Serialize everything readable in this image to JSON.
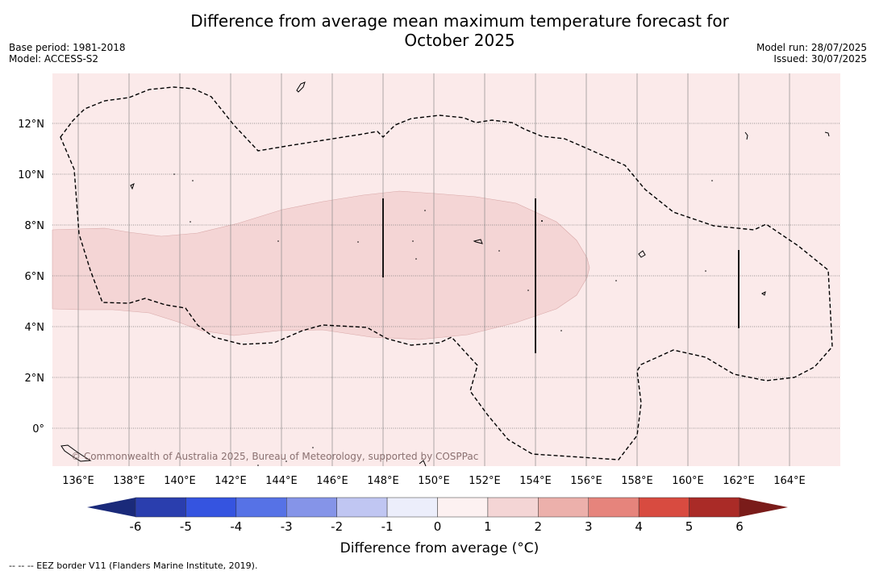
{
  "title_line1": "Difference from average mean maximum temperature forecast for",
  "title_line2": "October 2025",
  "base_period": "Base period: 1981-2018",
  "model": "Model: ACCESS-S2",
  "model_run": "Model run: 28/07/2025",
  "issued": "Issued: 30/07/2025",
  "copyright": "© Commonwealth of Australia 2025, Bureau of Meteorology, supported by COSPPac",
  "lon_labels": [
    "136°E",
    "138°E",
    "140°E",
    "142°E",
    "144°E",
    "146°E",
    "148°E",
    "150°E",
    "152°E",
    "154°E",
    "156°E",
    "158°E",
    "160°E",
    "162°E",
    "164°E"
  ],
  "lat_labels": [
    "12°N",
    "10°N",
    "8°N",
    "6°N",
    "4°N",
    "2°N",
    "0°"
  ],
  "colorbar": {
    "label": "Difference from average (°C)",
    "ticks": [
      "-6",
      "-5",
      "-4",
      "-3",
      "-2",
      "-1",
      "0",
      "1",
      "2",
      "3",
      "4",
      "5",
      "6"
    ],
    "colors": [
      "#2a3eae",
      "#3554e0",
      "#5672e6",
      "#8594e8",
      "#c0c6f2",
      "#eceefb",
      "#fdf1f1",
      "#f4d5d5",
      "#ecb0ab",
      "#e6847c",
      "#d84b40",
      "#aa2b27"
    ],
    "under_color": "#1a2a7a",
    "over_color": "#7a1c1a"
  },
  "footnote": "-- -- -- EEZ border V11 (Flanders Marine Institute, 2019).",
  "map_colors": {
    "background": "#fbeaea",
    "anomaly_1_2": "#f4d5d5"
  }
}
